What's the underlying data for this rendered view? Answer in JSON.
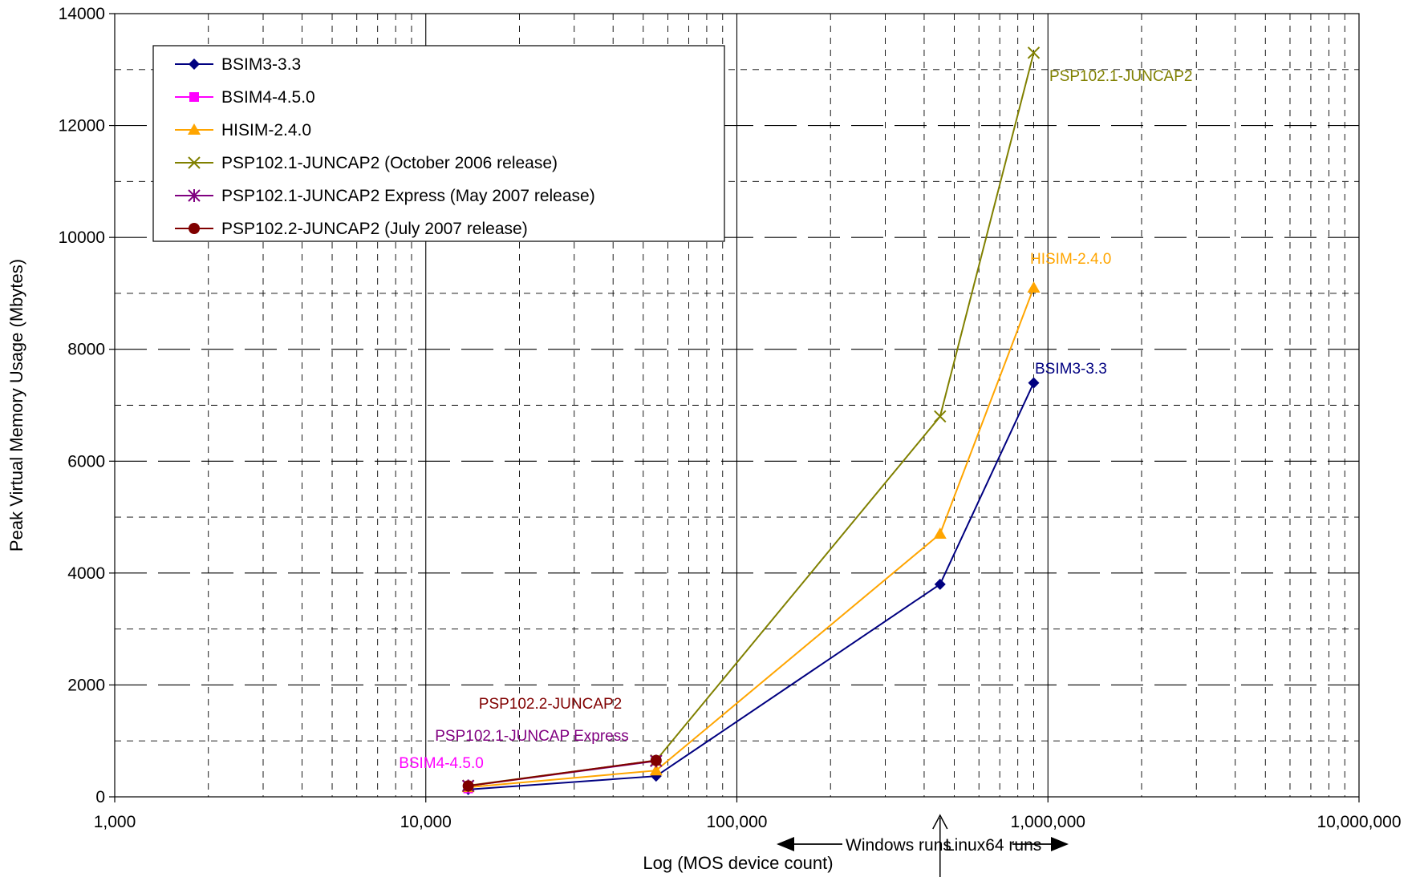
{
  "chart_data": {
    "type": "line",
    "title": "",
    "xlabel": "Log (MOS device count)",
    "ylabel": "Peak Virtual Memory Usage (Mbytes)",
    "xscale": "log",
    "xlim": [
      1000,
      10000000
    ],
    "ylim": [
      0,
      14000
    ],
    "grid": true,
    "legend_position": "top-left",
    "x_tick_labels": [
      "1,000",
      "10,000",
      "100,000",
      "1,000,000",
      "10,000,000"
    ],
    "y_tick_labels": [
      "0",
      "2000",
      "4000",
      "6000",
      "8000",
      "10000",
      "12000",
      "14000"
    ],
    "series": [
      {
        "name": "BSIM3-3.3",
        "color": "#000080",
        "marker": "diamond",
        "x": [
          13690,
          55000,
          450000,
          900000
        ],
        "y": [
          130,
          370,
          3800,
          7400
        ]
      },
      {
        "name": "BSIM4-4.5.0",
        "color": "#ff00ff",
        "marker": "square",
        "x": [
          13690
        ],
        "y": [
          150
        ]
      },
      {
        "name": "HISIM-2.4.0",
        "color": "#ffa500",
        "marker": "triangle",
        "x": [
          13690,
          55000,
          450000,
          900000
        ],
        "y": [
          170,
          470,
          4700,
          9100
        ]
      },
      {
        "name": "PSP102.1-JUNCAP2 (October 2006 release)",
        "color": "#808000",
        "marker": "x",
        "x": [
          13690,
          55000,
          450000,
          900000
        ],
        "y": [
          200,
          650,
          6800,
          13300
        ]
      },
      {
        "name": "PSP102.1-JUNCAP2 Express (May 2007 release)",
        "color": "#800080",
        "marker": "star",
        "x": [
          13690,
          55000
        ],
        "y": [
          195,
          640
        ]
      },
      {
        "name": "PSP102.2-JUNCAP2 (July 2007 release)",
        "color": "#800000",
        "marker": "circle",
        "x": [
          13690,
          55000
        ],
        "y": [
          195,
          650
        ]
      }
    ],
    "annotations": [
      {
        "text": "PSP102.1-JUNCAP2",
        "color": "#808000"
      },
      {
        "text": "HISIM-2.4.0",
        "color": "#ffa500"
      },
      {
        "text": "BSIM3-3.3",
        "color": "#000080"
      },
      {
        "text": "PSP102.2-JUNCAP2",
        "color": "#800000"
      },
      {
        "text": "PSP102.1-JUNCAP Express",
        "color": "#800080"
      },
      {
        "text": "BSIM4-4.5.0",
        "color": "#ff00ff"
      }
    ],
    "platform_notes": {
      "windows": "Windows runs",
      "linux": "Linux64 runs"
    }
  }
}
